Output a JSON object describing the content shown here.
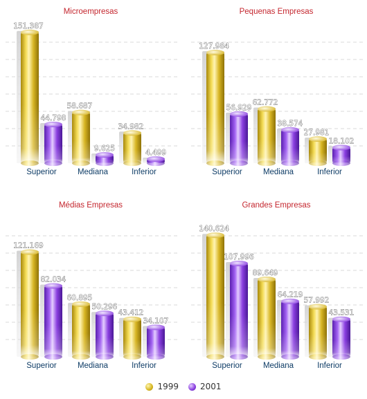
{
  "colors": {
    "series_1999": "#d9b929",
    "series_2001": "#8a3fe0",
    "title": "#c4262e",
    "category_label": "#0e3c66",
    "gridline": "#cccccc"
  },
  "legend": [
    {
      "label": "1999",
      "color": "#d9b929"
    },
    {
      "label": "2001",
      "color": "#8a3fe0"
    }
  ],
  "chart_data": [
    {
      "type": "bar",
      "title": "Microempresas",
      "categories": [
        "Superior",
        "Mediana",
        "Inferior"
      ],
      "series": [
        {
          "name": "1999",
          "values": [
            151387,
            58687,
            34982
          ],
          "labels": [
            "151.387",
            "58.687",
            "34.982"
          ]
        },
        {
          "name": "2001",
          "values": [
            44798,
            9625,
            4499
          ],
          "labels": [
            "44.798",
            "9.625",
            "4.499"
          ]
        }
      ],
      "ylim": [
        0,
        160000
      ],
      "grid": true,
      "legend_position": "bottom"
    },
    {
      "type": "bar",
      "title": "Pequenas Empresas",
      "categories": [
        "Superior",
        "Mediana",
        "Inferior"
      ],
      "series": [
        {
          "name": "1999",
          "values": [
            127984,
            62772,
            27981
          ],
          "labels": [
            "127.984",
            "62.772",
            "27.981"
          ]
        },
        {
          "name": "2001",
          "values": [
            56929,
            38574,
            18102
          ],
          "labels": [
            "56.929",
            "38.574",
            "18.102"
          ]
        }
      ],
      "ylim": [
        0,
        160000
      ],
      "grid": true,
      "legend_position": "bottom"
    },
    {
      "type": "bar",
      "title": "Médias Empresas",
      "categories": [
        "Superior",
        "Mediana",
        "Inferior"
      ],
      "series": [
        {
          "name": "1999",
          "values": [
            121169,
            60895,
            43412
          ],
          "labels": [
            "121.169",
            "60.895",
            "43.412"
          ]
        },
        {
          "name": "2001",
          "values": [
            82034,
            50296,
            34107
          ],
          "labels": [
            "82.034",
            "50.296",
            "34.107"
          ]
        }
      ],
      "ylim": [
        0,
        160000
      ],
      "grid": true,
      "legend_position": "bottom"
    },
    {
      "type": "bar",
      "title": "Grandes Empresas",
      "categories": [
        "Superior",
        "Mediana",
        "Inferior"
      ],
      "series": [
        {
          "name": "1999",
          "values": [
            140624,
            89649,
            57992
          ],
          "labels": [
            "140.624",
            "89.649",
            "57.992"
          ]
        },
        {
          "name": "2001",
          "values": [
            107996,
            64219,
            43531
          ],
          "labels": [
            "107.996",
            "64.219",
            "43.531"
          ]
        }
      ],
      "ylim": [
        0,
        160000
      ],
      "grid": true,
      "legend_position": "bottom"
    }
  ]
}
